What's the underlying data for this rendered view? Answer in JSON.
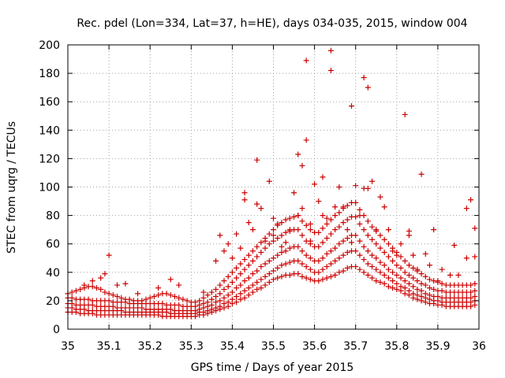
{
  "chart_data": {
    "type": "scatter",
    "title": "Rec. pdel (Lon=334, Lat=37, h=HE), days 034-035, 2015, window 004",
    "xlabel": "GPS time / Days of year 2015",
    "ylabel": "STEC from uqrg / TECUs",
    "xlim": [
      35,
      36
    ],
    "ylim": [
      0,
      200
    ],
    "xticks": [
      "35",
      "35.1",
      "35.2",
      "35.3",
      "35.4",
      "35.5",
      "35.6",
      "35.7",
      "35.8",
      "35.9",
      "36"
    ],
    "yticks": [
      "0",
      "20",
      "40",
      "60",
      "80",
      "100",
      "120",
      "140",
      "160",
      "180",
      "200"
    ],
    "grid": true,
    "marker": "+",
    "color": "#cc0000",
    "series": [
      {
        "x": [
          35.0,
          35.01,
          35.02,
          35.03,
          35.04,
          35.05,
          35.06,
          35.07,
          35.08,
          35.09,
          35.1,
          35.11,
          35.12,
          35.13,
          35.14,
          35.15,
          35.16,
          35.17,
          35.18,
          35.19,
          35.2,
          35.21,
          35.22,
          35.23,
          35.24,
          35.25,
          35.26,
          35.27,
          35.28,
          35.29,
          35.3,
          35.31,
          35.32,
          35.33,
          35.34,
          35.35,
          35.36,
          35.37,
          35.38,
          35.39,
          35.4,
          35.41,
          35.42,
          35.43,
          35.44,
          35.45,
          35.46,
          35.47,
          35.48,
          35.49,
          35.5,
          35.51,
          35.52,
          35.53,
          35.54,
          35.55,
          35.56,
          35.57,
          35.58,
          35.59,
          35.6,
          35.61,
          35.62,
          35.63,
          35.64,
          35.65,
          35.66,
          35.67,
          35.68,
          35.69,
          35.7,
          35.71,
          35.72,
          35.73,
          35.74,
          35.75,
          35.76,
          35.77,
          35.78,
          35.79,
          35.8,
          35.81,
          35.82,
          35.83,
          35.84,
          35.85,
          35.86,
          35.87,
          35.88,
          35.89,
          35.9,
          35.91,
          35.92,
          35.93,
          35.94,
          35.95,
          35.96,
          35.97,
          35.98,
          35.99
        ],
        "y": [
          12,
          12,
          12,
          11,
          11,
          11,
          11,
          10,
          10,
          10,
          10,
          10,
          10,
          10,
          10,
          10,
          10,
          10,
          10,
          10,
          10,
          10,
          10,
          9,
          9,
          9,
          9,
          9,
          9,
          9,
          9,
          9,
          10,
          10,
          11,
          12,
          13,
          14,
          15,
          16,
          18,
          19,
          21,
          22,
          24,
          26,
          28,
          29,
          31,
          33,
          35,
          36,
          37,
          38,
          38,
          39,
          39,
          37,
          36,
          35,
          34,
          34,
          35,
          36,
          37,
          38,
          40,
          41,
          43,
          44,
          44,
          42,
          40,
          38,
          36,
          34,
          33,
          32,
          30,
          29,
          28,
          27,
          25,
          24,
          22,
          21,
          20,
          19,
          18,
          18,
          17,
          17,
          16,
          16,
          16,
          16,
          16,
          16,
          16,
          17
        ]
      },
      {
        "x": [
          35.0,
          35.01,
          35.02,
          35.03,
          35.04,
          35.05,
          35.06,
          35.07,
          35.08,
          35.09,
          35.1,
          35.11,
          35.12,
          35.13,
          35.14,
          35.15,
          35.16,
          35.17,
          35.18,
          35.19,
          35.2,
          35.21,
          35.22,
          35.23,
          35.24,
          35.25,
          35.26,
          35.27,
          35.28,
          35.29,
          35.3,
          35.31,
          35.32,
          35.33,
          35.34,
          35.35,
          35.36,
          35.37,
          35.38,
          35.39,
          35.4,
          35.41,
          35.42,
          35.43,
          35.44,
          35.45,
          35.46,
          35.47,
          35.48,
          35.49,
          35.5,
          35.51,
          35.52,
          35.53,
          35.54,
          35.55,
          35.56,
          35.57,
          35.58,
          35.59,
          35.6,
          35.61,
          35.62,
          35.63,
          35.64,
          35.65,
          35.66,
          35.67,
          35.68,
          35.69,
          35.7,
          35.71,
          35.72,
          35.73,
          35.74,
          35.75,
          35.76,
          35.77,
          35.78,
          35.79,
          35.8,
          35.81,
          35.82,
          35.83,
          35.84,
          35.85,
          35.86,
          35.87,
          35.88,
          35.89,
          35.9,
          35.91,
          35.92,
          35.93,
          35.94,
          35.95,
          35.96,
          35.97,
          35.98,
          35.99
        ],
        "y": [
          15,
          15,
          14,
          14,
          14,
          13,
          13,
          13,
          13,
          13,
          13,
          13,
          13,
          13,
          12,
          12,
          12,
          12,
          12,
          12,
          12,
          12,
          12,
          12,
          12,
          11,
          11,
          11,
          11,
          11,
          11,
          11,
          12,
          12,
          13,
          14,
          15,
          16,
          18,
          19,
          21,
          23,
          25,
          27,
          29,
          31,
          33,
          35,
          37,
          39,
          41,
          43,
          45,
          46,
          47,
          48,
          48,
          46,
          44,
          42,
          40,
          40,
          42,
          44,
          46,
          48,
          50,
          52,
          54,
          55,
          55,
          52,
          49,
          46,
          44,
          42,
          40,
          38,
          36,
          34,
          32,
          30,
          29,
          27,
          25,
          24,
          23,
          22,
          21,
          20,
          20,
          19,
          19,
          19,
          19,
          19,
          19,
          19,
          19,
          20
        ]
      },
      {
        "x": [
          35.0,
          35.01,
          35.02,
          35.03,
          35.04,
          35.05,
          35.06,
          35.07,
          35.08,
          35.09,
          35.1,
          35.11,
          35.12,
          35.13,
          35.14,
          35.15,
          35.16,
          35.17,
          35.18,
          35.19,
          35.2,
          35.21,
          35.22,
          35.23,
          35.24,
          35.25,
          35.26,
          35.27,
          35.28,
          35.29,
          35.3,
          35.31,
          35.32,
          35.33,
          35.34,
          35.35,
          35.36,
          35.37,
          35.38,
          35.39,
          35.4,
          35.41,
          35.42,
          35.43,
          35.44,
          35.45,
          35.46,
          35.47,
          35.48,
          35.49,
          35.5,
          35.51,
          35.52,
          35.53,
          35.54,
          35.55,
          35.56,
          35.57,
          35.58,
          35.59,
          35.6,
          35.61,
          35.62,
          35.63,
          35.64,
          35.65,
          35.66,
          35.67,
          35.68,
          35.69,
          35.7,
          35.71,
          35.72,
          35.73,
          35.74,
          35.75,
          35.76,
          35.77,
          35.78,
          35.79,
          35.8,
          35.81,
          35.82,
          35.83,
          35.84,
          35.85,
          35.86,
          35.87,
          35.88,
          35.89,
          35.9,
          35.91,
          35.92,
          35.93,
          35.94,
          35.95,
          35.96,
          35.97,
          35.98,
          35.99
        ],
        "y": [
          18,
          18,
          17,
          17,
          17,
          17,
          17,
          16,
          16,
          16,
          16,
          16,
          15,
          15,
          15,
          15,
          15,
          15,
          15,
          14,
          14,
          14,
          14,
          14,
          14,
          14,
          13,
          13,
          13,
          13,
          13,
          13,
          14,
          15,
          16,
          17,
          19,
          20,
          22,
          24,
          26,
          29,
          31,
          34,
          36,
          39,
          41,
          44,
          46,
          48,
          50,
          52,
          54,
          55,
          57,
          58,
          58,
          55,
          52,
          50,
          48,
          48,
          50,
          53,
          55,
          57,
          60,
          62,
          64,
          66,
          66,
          62,
          58,
          55,
          52,
          50,
          47,
          45,
          42,
          40,
          38,
          36,
          34,
          32,
          30,
          28,
          27,
          25,
          24,
          23,
          23,
          22,
          22,
          22,
          22,
          22,
          22,
          22,
          22,
          23
        ]
      },
      {
        "x": [
          35.0,
          35.01,
          35.02,
          35.03,
          35.04,
          35.05,
          35.06,
          35.07,
          35.08,
          35.09,
          35.1,
          35.11,
          35.12,
          35.13,
          35.14,
          35.15,
          35.16,
          35.17,
          35.18,
          35.19,
          35.2,
          35.21,
          35.22,
          35.23,
          35.24,
          35.25,
          35.26,
          35.27,
          35.28,
          35.29,
          35.3,
          35.31,
          35.32,
          35.33,
          35.34,
          35.35,
          35.36,
          35.37,
          35.38,
          35.39,
          35.4,
          35.41,
          35.42,
          35.43,
          35.44,
          35.45,
          35.46,
          35.47,
          35.48,
          35.49,
          35.5,
          35.51,
          35.52,
          35.53,
          35.54,
          35.55,
          35.56,
          35.57,
          35.58,
          35.59,
          35.6,
          35.61,
          35.62,
          35.63,
          35.64,
          35.65,
          35.66,
          35.67,
          35.68,
          35.69,
          35.7,
          35.71,
          35.72,
          35.73,
          35.74,
          35.75,
          35.76,
          35.77,
          35.78,
          35.79,
          35.8,
          35.81,
          35.82,
          35.83,
          35.84,
          35.85,
          35.86,
          35.87,
          35.88,
          35.89,
          35.9,
          35.91,
          35.92,
          35.93,
          35.94,
          35.95,
          35.96,
          35.97,
          35.98,
          35.99
        ],
        "y": [
          22,
          22,
          21,
          21,
          21,
          21,
          20,
          20,
          20,
          20,
          20,
          19,
          19,
          19,
          19,
          18,
          18,
          18,
          18,
          18,
          18,
          18,
          18,
          18,
          17,
          17,
          17,
          17,
          16,
          16,
          16,
          16,
          17,
          18,
          19,
          21,
          23,
          25,
          28,
          30,
          33,
          36,
          39,
          42,
          45,
          48,
          51,
          54,
          57,
          60,
          62,
          64,
          66,
          68,
          69,
          70,
          70,
          66,
          62,
          60,
          58,
          58,
          61,
          64,
          67,
          70,
          72,
          75,
          77,
          79,
          79,
          74,
          70,
          66,
          63,
          60,
          57,
          54,
          51,
          48,
          45,
          43,
          40,
          38,
          36,
          34,
          32,
          31,
          29,
          28,
          27,
          27,
          26,
          26,
          26,
          26,
          26,
          26,
          26,
          27
        ]
      },
      {
        "x": [
          35.0,
          35.01,
          35.02,
          35.03,
          35.04,
          35.05,
          35.06,
          35.07,
          35.08,
          35.09,
          35.1,
          35.11,
          35.12,
          35.13,
          35.14,
          35.15,
          35.16,
          35.17,
          35.18,
          35.19,
          35.2,
          35.21,
          35.22,
          35.23,
          35.24,
          35.25,
          35.26,
          35.27,
          35.28,
          35.29,
          35.3,
          35.31,
          35.32,
          35.33,
          35.34,
          35.35,
          35.36,
          35.37,
          35.38,
          35.39,
          35.4,
          35.41,
          35.42,
          35.43,
          35.44,
          35.45,
          35.46,
          35.47,
          35.48,
          35.49,
          35.5,
          35.51,
          35.52,
          35.53,
          35.54,
          35.55,
          35.56,
          35.57,
          35.58,
          35.59,
          35.6,
          35.61,
          35.62,
          35.63,
          35.64,
          35.65,
          35.66,
          35.67,
          35.68,
          35.69,
          35.7,
          35.71,
          35.72,
          35.73,
          35.74,
          35.75,
          35.76,
          35.77,
          35.78,
          35.79,
          35.8,
          35.81,
          35.82,
          35.83,
          35.84,
          35.85,
          35.86,
          35.87,
          35.88,
          35.89,
          35.9,
          35.91,
          35.92,
          35.93,
          35.94,
          35.95,
          35.96,
          35.97,
          35.98,
          35.99
        ],
        "y": [
          25,
          26,
          27,
          28,
          29,
          30,
          30,
          29,
          28,
          26,
          25,
          24,
          23,
          22,
          21,
          21,
          20,
          20,
          20,
          21,
          22,
          23,
          24,
          25,
          25,
          24,
          23,
          22,
          21,
          20,
          19,
          19,
          20,
          22,
          24,
          26,
          28,
          31,
          34,
          37,
          40,
          43,
          46,
          49,
          52,
          55,
          58,
          61,
          64,
          67,
          70,
          73,
          75,
          77,
          78,
          79,
          80,
          76,
          73,
          70,
          68,
          68,
          71,
          74,
          77,
          80,
          82,
          85,
          87,
          89,
          89,
          84,
          80,
          76,
          72,
          69,
          66,
          63,
          60,
          57,
          54,
          51,
          48,
          45,
          43,
          41,
          39,
          37,
          35,
          34,
          33,
          32,
          31,
          31,
          31,
          31,
          31,
          31,
          31,
          32
        ]
      },
      {
        "x": [
          35.04,
          35.06,
          35.08,
          35.09,
          35.1,
          35.12,
          35.14,
          35.17,
          35.22,
          35.25,
          35.27,
          35.33,
          35.36,
          35.37,
          35.38,
          35.39,
          35.4,
          35.41,
          35.42,
          35.43,
          35.43,
          35.44,
          35.45,
          35.46,
          35.46,
          35.47,
          35.48,
          35.49,
          35.5,
          35.5,
          35.51,
          35.52,
          35.53,
          35.54,
          35.55,
          35.56,
          35.56,
          35.57,
          35.57,
          35.58,
          35.58,
          35.59,
          35.59,
          35.6,
          35.61,
          35.62,
          35.62,
          35.63,
          35.64,
          35.64,
          35.65,
          35.66,
          35.67,
          35.68,
          35.69,
          35.69,
          35.7,
          35.71,
          35.72,
          35.72,
          35.73,
          35.73,
          35.74,
          35.75,
          35.76,
          35.77,
          35.78,
          35.79,
          35.8,
          35.81,
          35.82,
          35.83,
          35.83,
          35.84,
          35.85,
          35.86,
          35.87,
          35.88,
          35.89,
          35.9,
          35.91,
          35.93,
          35.94,
          35.95,
          35.97,
          35.97,
          35.98,
          35.99,
          35.99
        ],
        "y": [
          31,
          34,
          36,
          39,
          52,
          31,
          32,
          25,
          29,
          35,
          31,
          26,
          48,
          66,
          55,
          60,
          50,
          67,
          57,
          96,
          91,
          75,
          70,
          88,
          119,
          85,
          62,
          104,
          78,
          66,
          74,
          58,
          61,
          70,
          96,
          80,
          123,
          115,
          85,
          189,
          133,
          62,
          74,
          102,
          90,
          80,
          107,
          78,
          196,
          182,
          86,
          100,
          86,
          70,
          61,
          157,
          101,
          80,
          99,
          177,
          170,
          99,
          104,
          70,
          93,
          86,
          70,
          55,
          52,
          60,
          151,
          69,
          66,
          52,
          42,
          109,
          53,
          45,
          70,
          34,
          42,
          38,
          59,
          38,
          85,
          50,
          91,
          71,
          51
        ]
      }
    ]
  }
}
